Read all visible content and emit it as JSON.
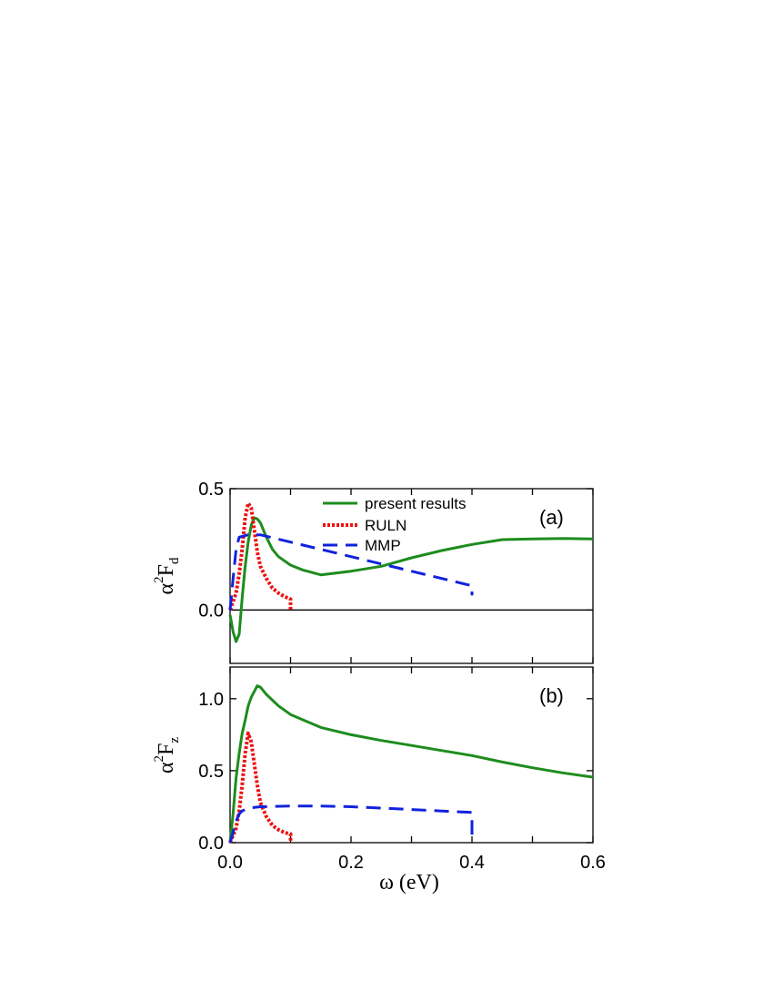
{
  "chart_data": [
    {
      "type": "line",
      "panel": "(a)",
      "ylabel": {
        "symbol": "α",
        "sup": "2",
        "main": "F",
        "sub": "d"
      },
      "xlim": [
        0,
        0.6
      ],
      "ylim": [
        -0.22,
        0.5
      ],
      "yticks": [
        0.0,
        0.5
      ],
      "ytick_labels": [
        "0.0",
        "0.5"
      ],
      "zero_line": true,
      "legend": {
        "placement": "top-center",
        "entries": [
          "present results",
          "RULN",
          "MMP"
        ]
      },
      "series": [
        {
          "name": "present results",
          "color": "#1e8c1e",
          "dash": "solid",
          "points": [
            [
              0.0,
              -0.02
            ],
            [
              0.005,
              -0.09
            ],
            [
              0.01,
              -0.13
            ],
            [
              0.015,
              -0.1
            ],
            [
              0.02,
              0.05
            ],
            [
              0.025,
              0.18
            ],
            [
              0.03,
              0.28
            ],
            [
              0.035,
              0.35
            ],
            [
              0.04,
              0.38
            ],
            [
              0.045,
              0.375
            ],
            [
              0.05,
              0.36
            ],
            [
              0.06,
              0.3
            ],
            [
              0.07,
              0.25
            ],
            [
              0.08,
              0.22
            ],
            [
              0.1,
              0.185
            ],
            [
              0.12,
              0.165
            ],
            [
              0.15,
              0.145
            ],
            [
              0.2,
              0.16
            ],
            [
              0.25,
              0.18
            ],
            [
              0.3,
              0.215
            ],
            [
              0.35,
              0.245
            ],
            [
              0.4,
              0.27
            ],
            [
              0.45,
              0.29
            ],
            [
              0.5,
              0.293
            ],
            [
              0.55,
              0.295
            ],
            [
              0.6,
              0.293
            ]
          ]
        },
        {
          "name": "RULN",
          "color": "#ee1111",
          "dash": "dotted",
          "points": [
            [
              0.0,
              0.0
            ],
            [
              0.01,
              0.07
            ],
            [
              0.015,
              0.15
            ],
            [
              0.02,
              0.25
            ],
            [
              0.025,
              0.38
            ],
            [
              0.03,
              0.44
            ],
            [
              0.035,
              0.42
            ],
            [
              0.04,
              0.33
            ],
            [
              0.045,
              0.24
            ],
            [
              0.05,
              0.18
            ],
            [
              0.06,
              0.13
            ],
            [
              0.07,
              0.09
            ],
            [
              0.08,
              0.07
            ],
            [
              0.09,
              0.055
            ],
            [
              0.1,
              0.045
            ],
            [
              0.1,
              0.0
            ]
          ]
        },
        {
          "name": "MMP",
          "color": "#1122dd",
          "dash": "dashed",
          "points": [
            [
              0.0,
              0.0
            ],
            [
              0.005,
              0.13
            ],
            [
              0.01,
              0.25
            ],
            [
              0.015,
              0.3
            ],
            [
              0.03,
              0.31
            ],
            [
              0.05,
              0.31
            ],
            [
              0.1,
              0.28
            ],
            [
              0.15,
              0.25
            ],
            [
              0.2,
              0.22
            ],
            [
              0.25,
              0.19
            ],
            [
              0.3,
              0.16
            ],
            [
              0.35,
              0.13
            ],
            [
              0.4,
              0.1
            ],
            [
              0.4,
              0.06
            ]
          ]
        }
      ]
    },
    {
      "type": "line",
      "panel": "(b)",
      "xlabel": {
        "symbol": "ω",
        "text": " (eV)"
      },
      "ylabel": {
        "symbol": "α",
        "sup": "2",
        "main": "F",
        "sub": "z"
      },
      "xlim": [
        0,
        0.6
      ],
      "ylim": [
        0,
        1.22
      ],
      "xticks": [
        0.0,
        0.2,
        0.4,
        0.6
      ],
      "xtick_labels": [
        "0.0",
        "0.2",
        "0.4",
        "0.6"
      ],
      "yticks": [
        0.0,
        0.5,
        1.0
      ],
      "ytick_labels": [
        "0.0",
        "0.5",
        "1.0"
      ],
      "series": [
        {
          "name": "present results",
          "color": "#1e8c1e",
          "dash": "solid",
          "points": [
            [
              0.0,
              0.0
            ],
            [
              0.005,
              0.2
            ],
            [
              0.01,
              0.45
            ],
            [
              0.015,
              0.62
            ],
            [
              0.02,
              0.76
            ],
            [
              0.025,
              0.85
            ],
            [
              0.03,
              0.95
            ],
            [
              0.035,
              1.01
            ],
            [
              0.04,
              1.05
            ],
            [
              0.045,
              1.09
            ],
            [
              0.05,
              1.08
            ],
            [
              0.06,
              1.03
            ],
            [
              0.08,
              0.95
            ],
            [
              0.1,
              0.89
            ],
            [
              0.15,
              0.8
            ],
            [
              0.2,
              0.75
            ],
            [
              0.25,
              0.71
            ],
            [
              0.3,
              0.675
            ],
            [
              0.35,
              0.64
            ],
            [
              0.4,
              0.605
            ],
            [
              0.45,
              0.56
            ],
            [
              0.5,
              0.52
            ],
            [
              0.55,
              0.485
            ],
            [
              0.6,
              0.455
            ]
          ]
        },
        {
          "name": "RULN",
          "color": "#ee1111",
          "dash": "dotted",
          "points": [
            [
              0.0,
              0.0
            ],
            [
              0.01,
              0.1
            ],
            [
              0.015,
              0.22
            ],
            [
              0.02,
              0.4
            ],
            [
              0.025,
              0.62
            ],
            [
              0.03,
              0.76
            ],
            [
              0.035,
              0.7
            ],
            [
              0.04,
              0.55
            ],
            [
              0.045,
              0.4
            ],
            [
              0.05,
              0.28
            ],
            [
              0.06,
              0.18
            ],
            [
              0.07,
              0.12
            ],
            [
              0.08,
              0.09
            ],
            [
              0.09,
              0.07
            ],
            [
              0.1,
              0.06
            ],
            [
              0.1,
              0.0
            ]
          ]
        },
        {
          "name": "MMP",
          "color": "#1122dd",
          "dash": "dashed",
          "points": [
            [
              0.0,
              0.0
            ],
            [
              0.005,
              0.07
            ],
            [
              0.01,
              0.15
            ],
            [
              0.015,
              0.2
            ],
            [
              0.02,
              0.22
            ],
            [
              0.03,
              0.24
            ],
            [
              0.05,
              0.25
            ],
            [
              0.1,
              0.255
            ],
            [
              0.15,
              0.255
            ],
            [
              0.2,
              0.25
            ],
            [
              0.25,
              0.24
            ],
            [
              0.3,
              0.23
            ],
            [
              0.35,
              0.22
            ],
            [
              0.4,
              0.21
            ],
            [
              0.4,
              0.0
            ]
          ]
        }
      ]
    }
  ]
}
